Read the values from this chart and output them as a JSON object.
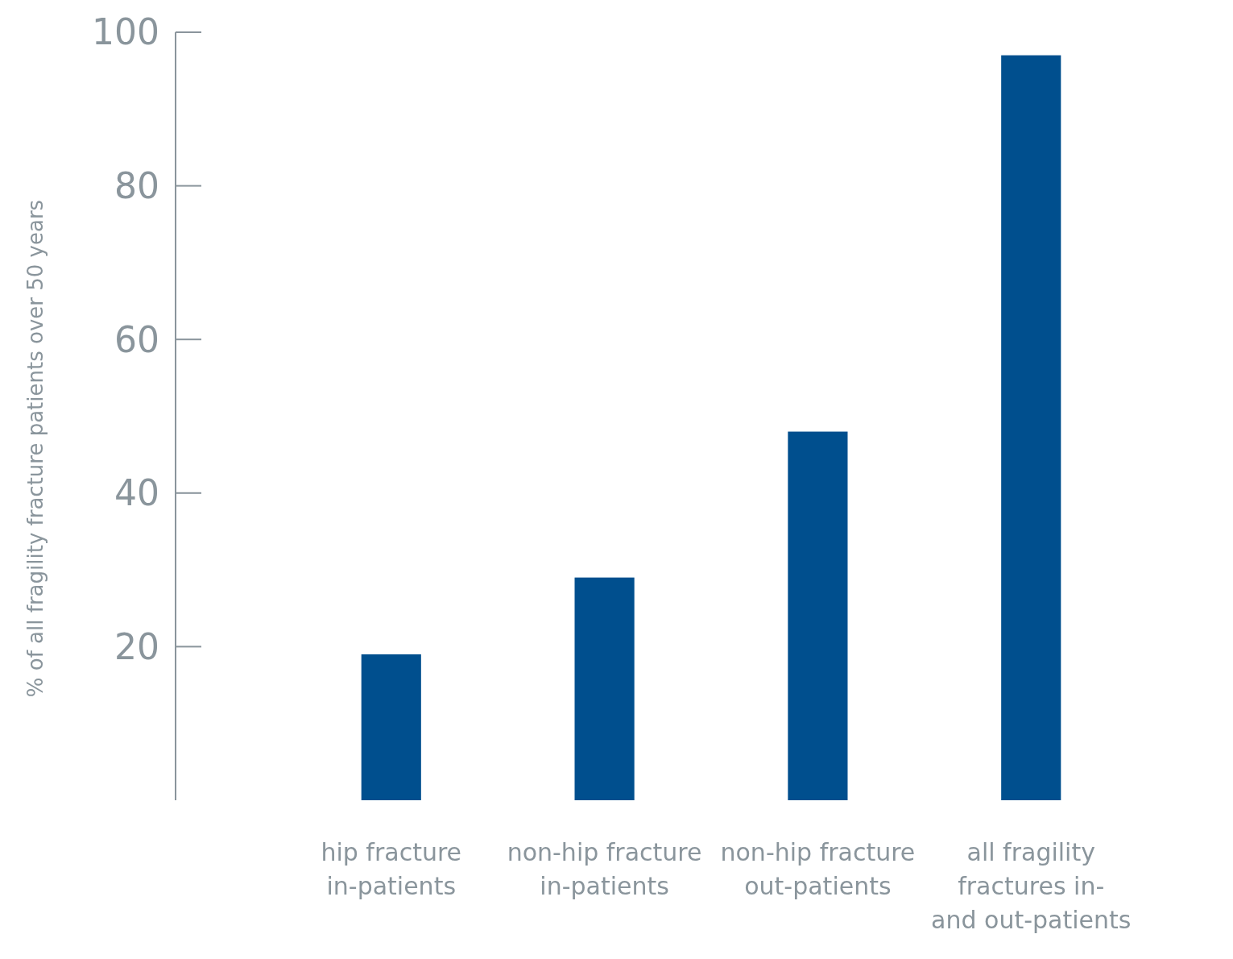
{
  "chart_data": {
    "type": "bar",
    "ylabel": "% of all fragility fracture patients over 50 years",
    "categories": [
      "hip fracture in-patients",
      "non-hip fracture in-patients",
      "non-hip fracture out-patients",
      "all fragility fractures in- and out-patients"
    ],
    "values": [
      19,
      29,
      48,
      97
    ],
    "color": "#004f8e",
    "ylim": [
      0,
      100
    ],
    "yticks": [
      20,
      40,
      60,
      80,
      100
    ],
    "grid": false
  }
}
